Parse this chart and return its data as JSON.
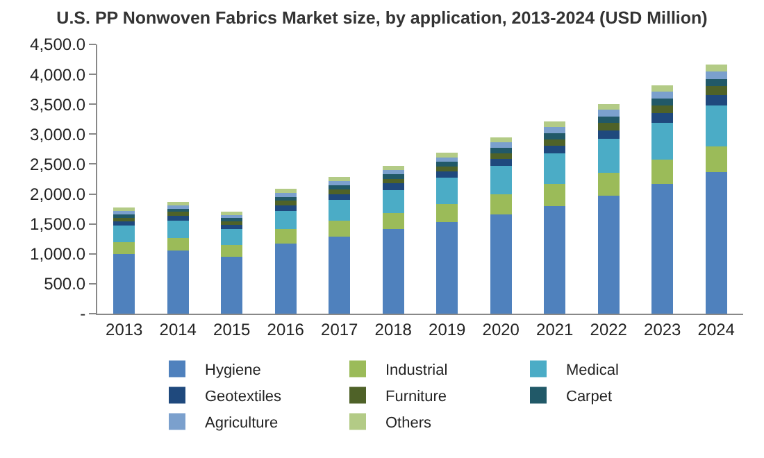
{
  "chart_data": {
    "type": "bar",
    "stacked": true,
    "title": "U.S. PP Nonwoven Fabrics Market size, by application, 2013-2024 (USD Million)",
    "categories": [
      "2013",
      "2014",
      "2015",
      "2016",
      "2017",
      "2018",
      "2019",
      "2020",
      "2021",
      "2022",
      "2023",
      "2024"
    ],
    "series": [
      {
        "name": "Hygiene",
        "color": "#4f81bd",
        "values": [
          1000,
          1050,
          950,
          1170,
          1290,
          1420,
          1530,
          1655,
          1800,
          1970,
          2165,
          2370
        ]
      },
      {
        "name": "Industrial",
        "color": "#9bbb59",
        "values": [
          190,
          210,
          200,
          240,
          270,
          260,
          300,
          340,
          365,
          380,
          415,
          430
        ]
      },
      {
        "name": "Medical",
        "color": "#4bacc6",
        "values": [
          280,
          300,
          270,
          310,
          340,
          390,
          440,
          470,
          510,
          570,
          615,
          680
        ]
      },
      {
        "name": "Geotextiles",
        "color": "#1f497d",
        "values": [
          75,
          80,
          70,
          95,
          100,
          105,
          110,
          125,
          135,
          145,
          160,
          170
        ]
      },
      {
        "name": "Furniture",
        "color": "#4f6228",
        "values": [
          60,
          60,
          55,
          70,
          75,
          80,
          80,
          95,
          105,
          120,
          125,
          155
        ]
      },
      {
        "name": "Carpet",
        "color": "#215968",
        "values": [
          55,
          55,
          50,
          65,
          70,
          75,
          75,
          85,
          100,
          110,
          115,
          120
        ]
      },
      {
        "name": "Agriculture",
        "color": "#7ba0cd",
        "values": [
          55,
          60,
          55,
          70,
          70,
          75,
          80,
          90,
          100,
          110,
          115,
          120
        ]
      },
      {
        "name": "Others",
        "color": "#b3cb86",
        "values": [
          55,
          55,
          50,
          70,
          65,
          70,
          75,
          85,
          95,
          100,
          110,
          115
        ]
      }
    ],
    "ylim": [
      0,
      4500
    ],
    "yticks": [
      {
        "value": 0,
        "label": "-"
      },
      {
        "value": 500,
        "label": "500.0"
      },
      {
        "value": 1000,
        "label": "1,000.0"
      },
      {
        "value": 1500,
        "label": "1,500.0"
      },
      {
        "value": 2000,
        "label": "2,000.0"
      },
      {
        "value": 2500,
        "label": "2,500.0"
      },
      {
        "value": 3000,
        "label": "3,000.0"
      },
      {
        "value": 3500,
        "label": "3,500.0"
      },
      {
        "value": 4000,
        "label": "4,000.0"
      },
      {
        "value": 4500,
        "label": "4,500.0"
      }
    ],
    "legend": "bottom"
  }
}
